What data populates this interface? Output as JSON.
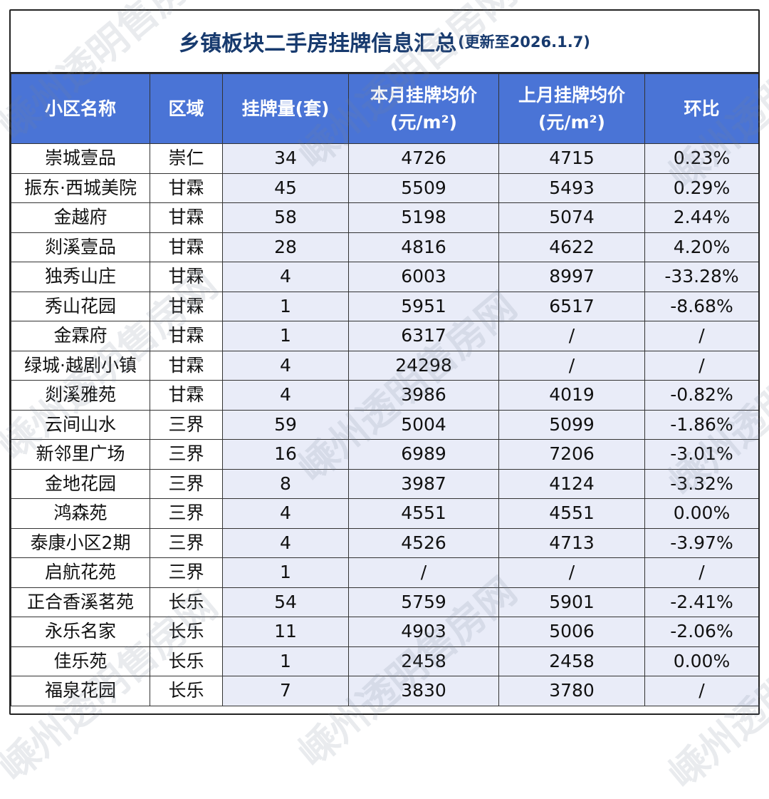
{
  "title": {
    "main": "乡镇板块二手房挂牌信息汇总",
    "sub": "(更新至2026.1.7)"
  },
  "headers": {
    "name": "小区名称",
    "area": "区域",
    "listings": "挂牌量(套)",
    "cur_price_l1": "本月挂牌均价",
    "cur_price_l2": "(元/m²)",
    "prev_price_l1": "上月挂牌均价",
    "prev_price_l2": "(元/m²)",
    "change": "环比"
  },
  "rows": [
    [
      "崇城壹品",
      "崇仁",
      "34",
      "4726",
      "4715",
      "0.23%"
    ],
    [
      "振东·西城美院",
      "甘霖",
      "45",
      "5509",
      "5493",
      "0.29%"
    ],
    [
      "金越府",
      "甘霖",
      "58",
      "5198",
      "5074",
      "2.44%"
    ],
    [
      "剡溪壹品",
      "甘霖",
      "28",
      "4816",
      "4622",
      "4.20%"
    ],
    [
      "独秀山庄",
      "甘霖",
      "4",
      "6003",
      "8997",
      "-33.28%"
    ],
    [
      "秀山花园",
      "甘霖",
      "1",
      "5951",
      "6517",
      "-8.68%"
    ],
    [
      "金霖府",
      "甘霖",
      "1",
      "6317",
      "/",
      "/"
    ],
    [
      "绿城·越剧小镇",
      "甘霖",
      "4",
      "24298",
      "/",
      "/"
    ],
    [
      "剡溪雅苑",
      "甘霖",
      "4",
      "3986",
      "4019",
      "-0.82%"
    ],
    [
      "云间山水",
      "三界",
      "59",
      "5004",
      "5099",
      "-1.86%"
    ],
    [
      "新邻里广场",
      "三界",
      "16",
      "6989",
      "7206",
      "-3.01%"
    ],
    [
      "金地花园",
      "三界",
      "8",
      "3987",
      "4124",
      "-3.32%"
    ],
    [
      "鸿森苑",
      "三界",
      "4",
      "4551",
      "4551",
      "0.00%"
    ],
    [
      "泰康小区2期",
      "三界",
      "4",
      "4526",
      "4713",
      "-3.97%"
    ],
    [
      "启航花苑",
      "三界",
      "1",
      "/",
      "/",
      "/"
    ],
    [
      "正合香溪茗苑",
      "长乐",
      "54",
      "5759",
      "5901",
      "-2.41%"
    ],
    [
      "永乐名家",
      "长乐",
      "11",
      "4903",
      "5006",
      "-2.06%"
    ],
    [
      "佳乐苑",
      "长乐",
      "1",
      "2458",
      "2458",
      "0.00%"
    ],
    [
      "福泉花园",
      "长乐",
      "7",
      "3830",
      "3780",
      "/"
    ]
  ],
  "watermark": "嵊州透明售房网"
}
